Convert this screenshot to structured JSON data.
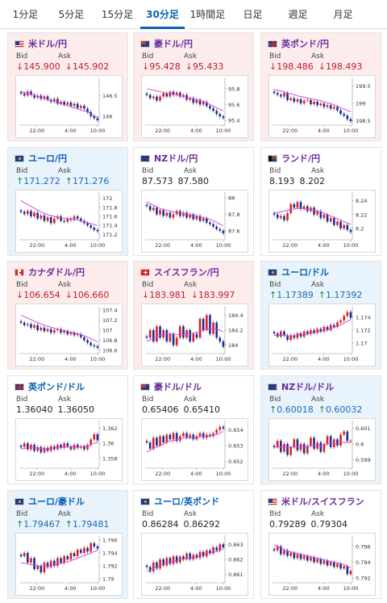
{
  "tabs": [
    {
      "label": "1分足",
      "active": false
    },
    {
      "label": "5分足",
      "active": false
    },
    {
      "label": "15分足",
      "active": false
    },
    {
      "label": "30分足",
      "active": true
    },
    {
      "label": "1時間足",
      "active": false
    },
    {
      "label": "日足",
      "active": false
    },
    {
      "label": "週足",
      "active": false
    },
    {
      "label": "月足",
      "active": false
    }
  ],
  "labels": {
    "bid": "Bid",
    "ask": "Ask"
  },
  "x_ticks": [
    "22:00",
    "4:00",
    "10:00"
  ],
  "cards": [
    {
      "pair": "米ドル/円",
      "flag": "us",
      "trend": "down",
      "bid": "145.900",
      "ask": "145.902",
      "y_ticks": [
        "146.5",
        "146"
      ],
      "ylim": [
        145.8,
        146.9
      ],
      "closes": [
        146.55,
        146.5,
        146.6,
        146.52,
        146.45,
        146.5,
        146.42,
        146.48,
        146.4,
        146.35,
        146.42,
        146.3,
        146.35,
        146.28,
        146.33,
        146.25,
        146.3,
        146.2,
        146.25,
        146.18,
        146.1,
        146.0,
        145.95,
        145.9
      ],
      "ma": [
        146.6,
        146.58,
        146.55,
        146.53,
        146.5,
        146.48,
        146.45,
        146.43,
        146.4,
        146.38,
        146.36,
        146.33,
        146.3,
        146.28,
        146.26,
        146.23,
        146.2,
        146.18,
        146.15,
        146.12,
        146.1,
        146.05,
        146.0,
        145.98
      ]
    },
    {
      "pair": "豪ドル/円",
      "flag": "au",
      "trend": "down",
      "bid": "95.428",
      "ask": "95.433",
      "y_ticks": [
        "95.8",
        "95.6",
        "95.4"
      ],
      "ylim": [
        95.35,
        95.92
      ],
      "closes": [
        95.72,
        95.68,
        95.7,
        95.65,
        95.7,
        95.74,
        95.7,
        95.76,
        95.72,
        95.75,
        95.7,
        95.72,
        95.66,
        95.68,
        95.62,
        95.66,
        95.6,
        95.63,
        95.58,
        95.55,
        95.52,
        95.48,
        95.45,
        95.43
      ],
      "ma": [
        95.8,
        95.79,
        95.78,
        95.77,
        95.76,
        95.75,
        95.74,
        95.74,
        95.73,
        95.72,
        95.71,
        95.7,
        95.69,
        95.68,
        95.67,
        95.66,
        95.65,
        95.64,
        95.62,
        95.6,
        95.58,
        95.56,
        95.54,
        95.52
      ]
    },
    {
      "pair": "英ポンド/円",
      "flag": "gb",
      "trend": "down",
      "bid": "198.486",
      "ask": "198.493",
      "y_ticks": [
        "199.5",
        "199",
        "198.5"
      ],
      "ylim": [
        198.4,
        199.7
      ],
      "closes": [
        199.3,
        199.25,
        199.2,
        199.3,
        199.1,
        199.15,
        199.05,
        199.12,
        199.0,
        199.08,
        199.1,
        198.98,
        199.05,
        198.95,
        199.0,
        198.9,
        198.95,
        198.85,
        198.9,
        198.8,
        198.7,
        198.65,
        198.55,
        198.49
      ],
      "ma": [
        199.4,
        199.38,
        199.36,
        199.33,
        199.3,
        199.28,
        199.25,
        199.22,
        199.2,
        199.18,
        199.16,
        199.14,
        199.12,
        199.1,
        199.08,
        199.05,
        199.02,
        199.0,
        198.96,
        198.92,
        198.88,
        198.84,
        198.8,
        198.76
      ]
    },
    {
      "pair": "ユーロ/円",
      "flag": "eu",
      "trend": "up",
      "bid": "171.272",
      "ask": "171.276",
      "y_ticks": [
        "172",
        "171.8",
        "171.6",
        "171.4",
        "171.2"
      ],
      "ylim": [
        171.1,
        172.1
      ],
      "closes": [
        171.7,
        171.65,
        171.72,
        171.6,
        171.68,
        171.55,
        171.62,
        171.5,
        171.58,
        171.45,
        171.55,
        171.6,
        171.5,
        171.48,
        171.55,
        171.52,
        171.6,
        171.55,
        171.5,
        171.45,
        171.4,
        171.35,
        171.3,
        171.27
      ],
      "ma": [
        171.95,
        171.9,
        171.86,
        171.82,
        171.78,
        171.74,
        171.7,
        171.67,
        171.64,
        171.62,
        171.6,
        171.58,
        171.57,
        171.56,
        171.55,
        171.54,
        171.53,
        171.52,
        171.5,
        171.48,
        171.46,
        171.44,
        171.42,
        171.4
      ]
    },
    {
      "pair": "NZドル/円",
      "flag": "nz",
      "trend": "flat",
      "bid": "87.573",
      "ask": "87.580",
      "y_ticks": [
        "88",
        "87.8",
        "87.6"
      ],
      "ylim": [
        87.5,
        88.05
      ],
      "closes": [
        87.9,
        87.85,
        87.88,
        87.8,
        87.85,
        87.78,
        87.82,
        87.76,
        87.8,
        87.84,
        87.78,
        87.82,
        87.76,
        87.8,
        87.74,
        87.78,
        87.72,
        87.75,
        87.7,
        87.68,
        87.65,
        87.62,
        87.6,
        87.57
      ],
      "ma": [
        87.95,
        87.93,
        87.91,
        87.89,
        87.87,
        87.86,
        87.85,
        87.84,
        87.83,
        87.82,
        87.81,
        87.8,
        87.8,
        87.79,
        87.78,
        87.78,
        87.77,
        87.76,
        87.75,
        87.74,
        87.72,
        87.7,
        87.68,
        87.66
      ]
    },
    {
      "pair": "ランド/円",
      "flag": "za",
      "trend": "flat",
      "bid": "8.193",
      "ask": "8.202",
      "y_ticks": [
        "8.24",
        "8.22",
        "8.2"
      ],
      "ylim": [
        8.185,
        8.25
      ],
      "closes": [
        8.22,
        8.215,
        8.218,
        8.212,
        8.222,
        8.235,
        8.23,
        8.238,
        8.228,
        8.232,
        8.225,
        8.23,
        8.22,
        8.225,
        8.215,
        8.22,
        8.21,
        8.215,
        8.205,
        8.21,
        8.2,
        8.205,
        8.198,
        8.195
      ],
      "ma": [
        8.222,
        8.223,
        8.224,
        8.225,
        8.226,
        8.227,
        8.228,
        8.229,
        8.229,
        8.229,
        8.228,
        8.227,
        8.226,
        8.225,
        8.224,
        8.222,
        8.22,
        8.218,
        8.216,
        8.214,
        8.212,
        8.21,
        8.208,
        8.206
      ]
    },
    {
      "pair": "カナダドル/円",
      "flag": "ca",
      "trend": "down",
      "bid": "106.654",
      "ask": "106.660",
      "y_ticks": [
        "107.4",
        "107.2",
        "107",
        "106.8",
        "106.6"
      ],
      "ylim": [
        106.55,
        107.45
      ],
      "closes": [
        107.15,
        107.1,
        107.12,
        107.05,
        107.1,
        107.0,
        107.05,
        106.98,
        107.02,
        106.95,
        107.0,
        107.02,
        106.95,
        106.98,
        106.92,
        106.95,
        106.9,
        106.92,
        106.86,
        106.8,
        106.75,
        106.7,
        106.68,
        106.65
      ],
      "ma": [
        107.3,
        107.27,
        107.24,
        107.21,
        107.18,
        107.15,
        107.12,
        107.1,
        107.08,
        107.06,
        107.04,
        107.02,
        107.0,
        106.99,
        106.98,
        106.96,
        106.95,
        106.93,
        106.91,
        106.89,
        106.86,
        106.83,
        106.8,
        106.77
      ]
    },
    {
      "pair": "スイスフラン/円",
      "flag": "ch",
      "trend": "down",
      "bid": "183.981",
      "ask": "183.997",
      "y_ticks": [
        "184.4",
        "184.2",
        "184"
      ],
      "ylim": [
        183.9,
        184.5
      ],
      "closes": [
        184.1,
        184.2,
        184.05,
        184.25,
        184.1,
        184.2,
        184.05,
        184.15,
        184.0,
        184.1,
        184.25,
        184.1,
        184.2,
        184.05,
        184.15,
        184.1,
        184.35,
        184.2,
        184.4,
        184.15,
        184.3,
        184.1,
        184.05,
        183.98
      ],
      "ma": [
        184.05,
        184.07,
        184.09,
        184.11,
        184.13,
        184.14,
        184.15,
        184.15,
        184.15,
        184.14,
        184.14,
        184.14,
        184.15,
        184.15,
        184.16,
        184.17,
        184.18,
        184.2,
        184.21,
        184.22,
        184.22,
        184.21,
        184.2,
        184.18
      ]
    },
    {
      "pair": "ユーロ/ドル",
      "flag": "eu",
      "trend": "up",
      "bid": "1.17389",
      "ask": "1.17392",
      "y_ticks": [
        "1.174",
        "1.172",
        "1.17"
      ],
      "ylim": [
        1.1685,
        1.1755
      ],
      "closes": [
        1.1715,
        1.171,
        1.1718,
        1.1712,
        1.1705,
        1.1712,
        1.1708,
        1.1715,
        1.171,
        1.1718,
        1.1714,
        1.172,
        1.1716,
        1.1722,
        1.1718,
        1.1725,
        1.172,
        1.1728,
        1.1725,
        1.1732,
        1.1735,
        1.1742,
        1.1748,
        1.1739
      ],
      "ma": [
        1.1712,
        1.1712,
        1.1712,
        1.1712,
        1.1711,
        1.1711,
        1.1711,
        1.1712,
        1.1712,
        1.1713,
        1.1714,
        1.1715,
        1.1716,
        1.1717,
        1.1718,
        1.172,
        1.1721,
        1.1723,
        1.1724,
        1.1726,
        1.1728,
        1.1731,
        1.1734,
        1.1736
      ]
    },
    {
      "pair": "英ポンド/ドル",
      "flag": "gb",
      "trend": "flat",
      "bid": "1.36040",
      "ask": "1.36050",
      "y_ticks": [
        "1.362",
        "1.36",
        "1.358"
      ],
      "ylim": [
        1.3568,
        1.3628
      ],
      "closes": [
        1.3595,
        1.36,
        1.3592,
        1.3598,
        1.359,
        1.3595,
        1.3588,
        1.3594,
        1.359,
        1.3596,
        1.3592,
        1.3598,
        1.3594,
        1.36,
        1.3596,
        1.3592,
        1.3598,
        1.3594,
        1.3596,
        1.3592,
        1.3598,
        1.3605,
        1.3612,
        1.3604
      ],
      "ma": [
        1.3593,
        1.3593,
        1.3594,
        1.3594,
        1.3594,
        1.3594,
        1.3593,
        1.3593,
        1.3593,
        1.3593,
        1.3594,
        1.3594,
        1.3594,
        1.3595,
        1.3595,
        1.3595,
        1.3595,
        1.3595,
        1.3595,
        1.3596,
        1.3596,
        1.3598,
        1.36,
        1.3601
      ]
    },
    {
      "pair": "豪ドル/ドル",
      "flag": "au",
      "trend": "flat",
      "bid": "0.65406",
      "ask": "0.65410",
      "y_ticks": [
        "0.654",
        "0.653",
        "0.652"
      ],
      "ylim": [
        0.6516,
        0.6545
      ],
      "closes": [
        0.6532,
        0.6528,
        0.6535,
        0.653,
        0.6536,
        0.6532,
        0.6537,
        0.6534,
        0.6538,
        0.6533,
        0.6536,
        0.6538,
        0.6535,
        0.6537,
        0.6534,
        0.6536,
        0.6538,
        0.6535,
        0.6537,
        0.6536,
        0.6538,
        0.654,
        0.6542,
        0.6541
      ],
      "ma": [
        0.6526,
        0.6527,
        0.6528,
        0.6529,
        0.653,
        0.6531,
        0.6532,
        0.6533,
        0.6533,
        0.6534,
        0.6534,
        0.6535,
        0.6535,
        0.6535,
        0.6535,
        0.6535,
        0.6536,
        0.6536,
        0.6536,
        0.6536,
        0.6537,
        0.6537,
        0.6538,
        0.6539
      ]
    },
    {
      "pair": "NZドル/ドル",
      "flag": "nz",
      "trend": "up",
      "bid": "0.60018",
      "ask": "0.60032",
      "y_ticks": [
        "0.601",
        "0.6",
        "0.599"
      ],
      "ylim": [
        0.5985,
        0.6014
      ],
      "closes": [
        0.5998,
        0.6002,
        0.5995,
        0.6,
        0.5993,
        0.5998,
        0.6003,
        0.5996,
        0.6,
        0.5994,
        0.5999,
        0.6004,
        0.5997,
        0.6001,
        0.5995,
        0.6,
        0.6005,
        0.5998,
        0.6003,
        0.5999,
        0.6006,
        0.6008,
        0.6002,
        0.6002
      ],
      "ma": [
        0.5998,
        0.5998,
        0.5998,
        0.5998,
        0.5998,
        0.5998,
        0.5998,
        0.5998,
        0.5998,
        0.5998,
        0.5998,
        0.5999,
        0.5999,
        0.5999,
        0.5999,
        0.5999,
        0.6,
        0.6,
        0.6,
        0.6,
        0.6001,
        0.6001,
        0.6001,
        0.6001
      ]
    },
    {
      "pair": "ユーロ/豪ドル",
      "flag": "eu",
      "trend": "up",
      "bid": "1.79467",
      "ask": "1.79481",
      "y_ticks": [
        "1.796",
        "1.794",
        "1.792",
        "1.79"
      ],
      "ylim": [
        1.7895,
        1.7965
      ],
      "closes": [
        1.7935,
        1.794,
        1.7925,
        1.7932,
        1.7915,
        1.792,
        1.791,
        1.7925,
        1.7918,
        1.7928,
        1.792,
        1.7932,
        1.7925,
        1.7935,
        1.793,
        1.794,
        1.7935,
        1.7945,
        1.794,
        1.7948,
        1.7942,
        1.7955,
        1.795,
        1.7947
      ],
      "ma": [
        1.7925,
        1.7924,
        1.7923,
        1.7922,
        1.7921,
        1.792,
        1.792,
        1.792,
        1.792,
        1.7921,
        1.7922,
        1.7923,
        1.7924,
        1.7925,
        1.7926,
        1.7928,
        1.793,
        1.7932,
        1.7934,
        1.7936,
        1.7938,
        1.794,
        1.7942,
        1.7944
      ]
    },
    {
      "pair": "ユーロ/英ポンド",
      "flag": "eu",
      "trend": "flat",
      "bid": "0.86284",
      "ask": "0.86292",
      "y_ticks": [
        "0.863",
        "0.862",
        "0.861"
      ],
      "ylim": [
        0.8605,
        0.8635
      ],
      "closes": [
        0.8615,
        0.8612,
        0.8618,
        0.8614,
        0.862,
        0.8616,
        0.8621,
        0.8617,
        0.8622,
        0.8618,
        0.8622,
        0.862,
        0.8624,
        0.862,
        0.8623,
        0.8621,
        0.8625,
        0.8622,
        0.8626,
        0.8624,
        0.8628,
        0.8626,
        0.863,
        0.8628
      ],
      "ma": [
        0.8612,
        0.8613,
        0.8614,
        0.8615,
        0.8616,
        0.8617,
        0.8618,
        0.8618,
        0.8619,
        0.8619,
        0.862,
        0.862,
        0.8621,
        0.8621,
        0.8622,
        0.8622,
        0.8623,
        0.8623,
        0.8624,
        0.8624,
        0.8625,
        0.8625,
        0.8626,
        0.8627
      ]
    },
    {
      "pair": "米ドル/スイスフラン",
      "flag": "us",
      "trend": "flat",
      "bid": "0.79289",
      "ask": "0.79304",
      "y_ticks": [
        "0.796",
        "0.794",
        "0.792"
      ],
      "ylim": [
        0.7915,
        0.7972
      ],
      "closes": [
        0.7955,
        0.796,
        0.795,
        0.7955,
        0.7948,
        0.7952,
        0.7945,
        0.795,
        0.7944,
        0.7948,
        0.7942,
        0.7946,
        0.794,
        0.7944,
        0.7938,
        0.7942,
        0.7936,
        0.794,
        0.7934,
        0.7938,
        0.7932,
        0.7935,
        0.7925,
        0.7929
      ],
      "ma": [
        0.7962,
        0.796,
        0.7958,
        0.7956,
        0.7954,
        0.7953,
        0.7952,
        0.7951,
        0.795,
        0.7949,
        0.7948,
        0.7947,
        0.7946,
        0.7945,
        0.7944,
        0.7943,
        0.7942,
        0.7941,
        0.794,
        0.7939,
        0.7938,
        0.7937,
        0.7935,
        0.7933
      ]
    }
  ]
}
